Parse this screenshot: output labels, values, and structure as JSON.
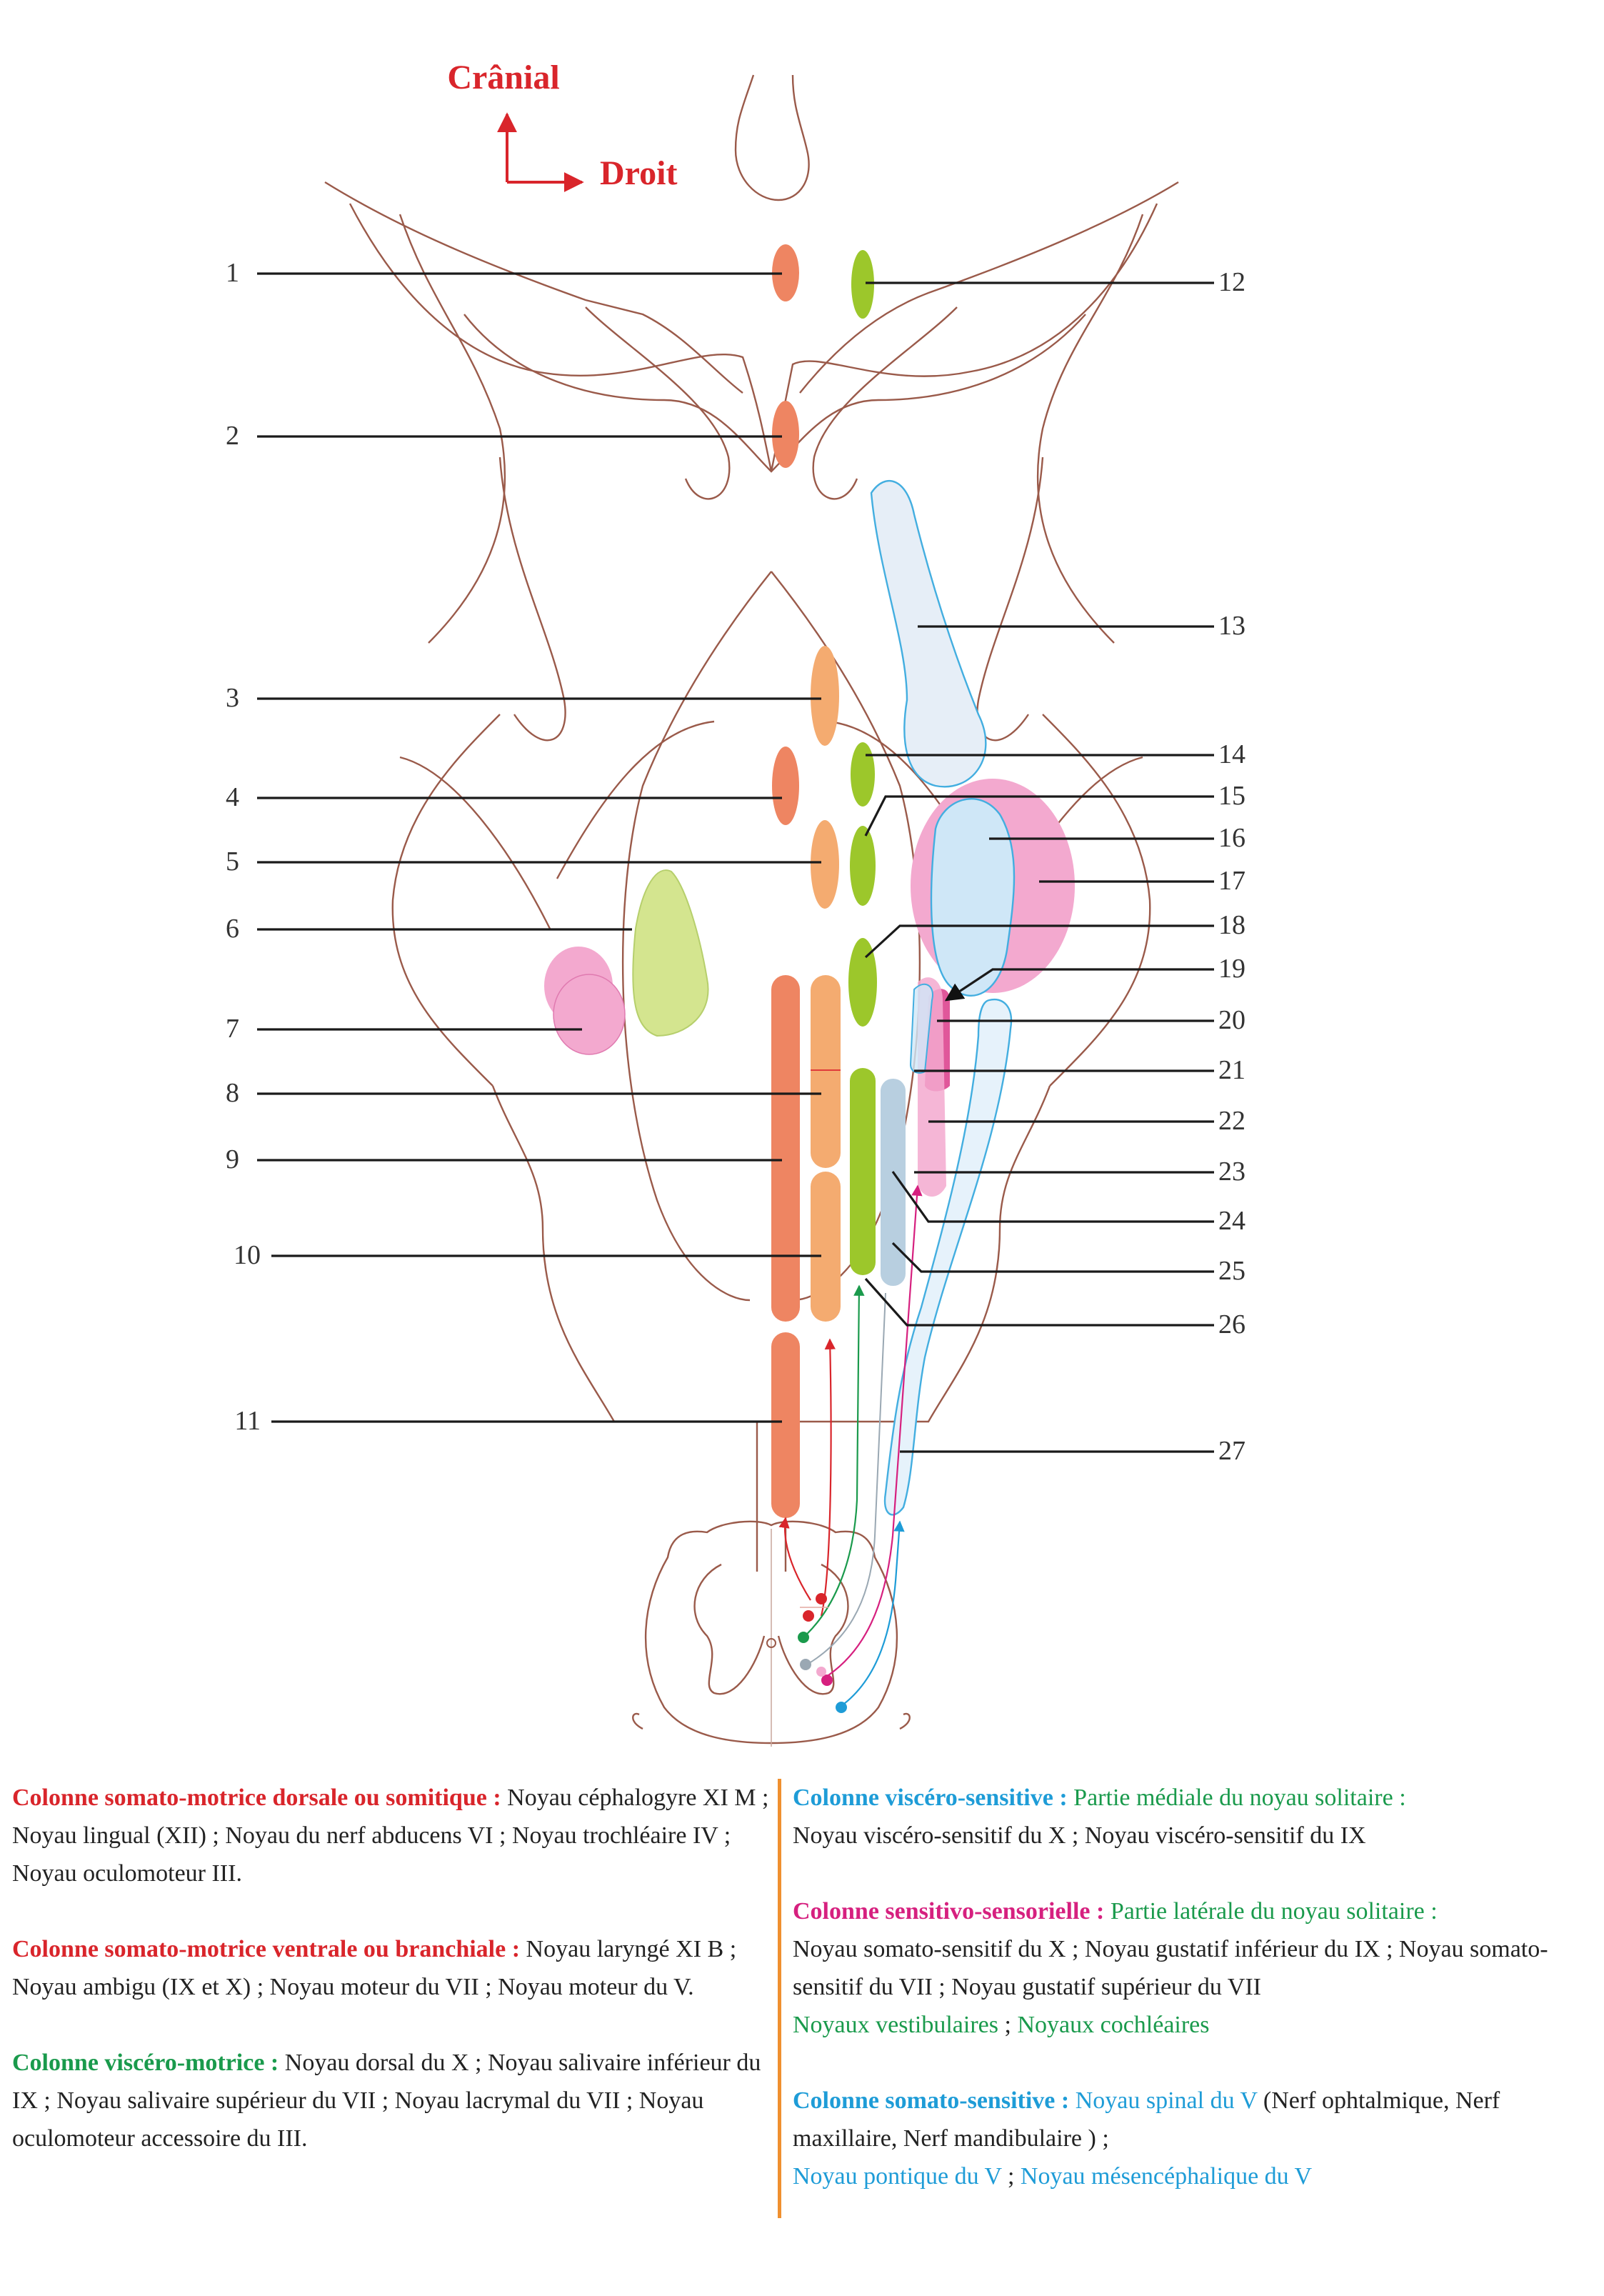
{
  "orientation": {
    "cranial": "Crânial",
    "right": "Droit"
  },
  "labels": {
    "left": [
      "1",
      "2",
      "3",
      "4",
      "5",
      "6",
      "7",
      "8",
      "9",
      "10",
      "11"
    ],
    "right": [
      "12",
      "13",
      "14",
      "15",
      "16",
      "17",
      "18",
      "19",
      "20",
      "21",
      "22",
      "23",
      "24",
      "25",
      "26",
      "27"
    ]
  },
  "colors": {
    "somatic_motor_dorsal": "#ee8562",
    "somatic_motor_ventral": "#f4ab70",
    "visceral_motor": "#9cc72b",
    "visceral_sensory_pale": "#d4e58f",
    "sensory_pink": "#f3a9cf",
    "sensory_magenta": "#e0579a",
    "somatic_sensory": "#cfe7f7",
    "somatic_sensory_stroke": "#43aee0",
    "vestibular_grey": "#b8cfe0",
    "outline": "#9a5a4a",
    "divider": "#f0902f"
  },
  "legend": {
    "col1": {
      "title": "Colonne somato-motrice dorsale ou somitique :",
      "text": " Noyau céphalogyre XI M ; Noyau lingual (XII) ; Noyau du nerf abducens VI ; Noyau trochléaire IV ; Noyau oculomoteur III."
    },
    "col2": {
      "title": "Colonne somato-motrice ventrale ou branchiale :",
      "text": " Noyau laryngé XI B ; Noyau ambigu (IX et X) ; Noyau moteur du VII ; Noyau moteur du V."
    },
    "col3": {
      "title": "Colonne viscéro-motrice :",
      "text": " Noyau dorsal du X ; Noyau salivaire inférieur du IX ; Noyau salivaire supérieur du VII ; Noyau lacrymal du VII ; Noyau oculomoteur accessoire du III."
    },
    "col4": {
      "title": "Colonne viscéro-sensitive :",
      "sub": " Partie médiale du noyau solitaire :",
      "text": "Noyau viscéro-sensitif du X ; Noyau viscéro-sensitif du IX"
    },
    "col5": {
      "title": "Colonne sensitivo-sensorielle :",
      "sub": " Partie latérale du noyau solitaire :",
      "text": "Noyau somato-sensitif du X  ; Noyau gustatif inférieur du IX  ; Noyau somato-sensitif du VII ; Noyau gustatif supérieur du VII",
      "green_a": "Noyaux vestibulaires",
      "sep": " ; ",
      "green_b": "Noyaux cochléaires"
    },
    "col6": {
      "title": "Colonne somato-sensitive :",
      "blue_a": "  Noyau spinal du V",
      "text": " (Nerf ophtalmique, Nerf maxillaire, Nerf mandibulaire ) ;",
      "blue_b": "Noyau pontique du V",
      "sep": " ; ",
      "blue_c": "Noyau mésencéphalique du V"
    }
  }
}
